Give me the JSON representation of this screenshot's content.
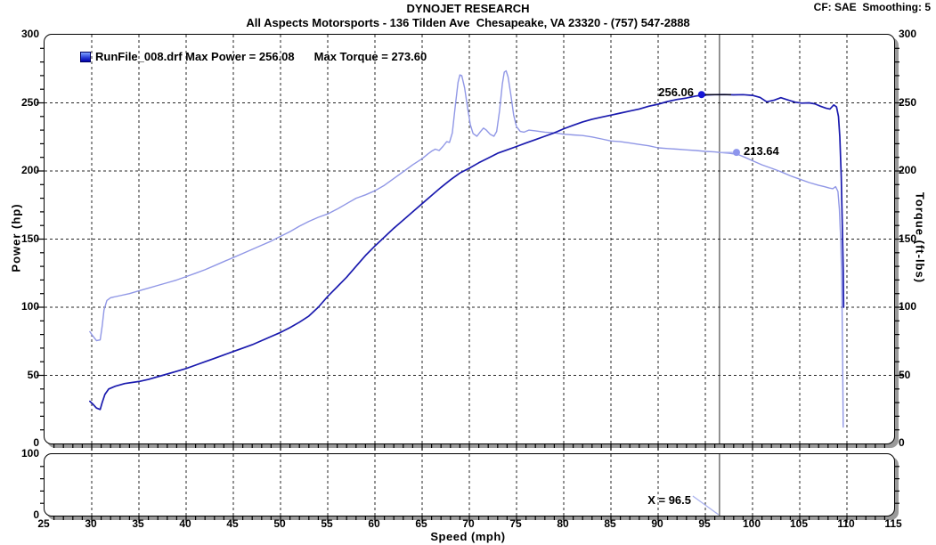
{
  "header": {
    "title": "DYNOJET RESEARCH",
    "subtitle": "All Aspects Motorsports - 136 Tilden Ave  Chesapeake, VA 23320 - (757) 547-2888",
    "settings": "CF: SAE  Smoothing: 5"
  },
  "legend": {
    "run_file": "RunFile_008.drf",
    "max_power": "Max Power = 256.08",
    "max_torque": "Max Torque = 273.60",
    "swatch_color": "#2b3fd9"
  },
  "axes": {
    "x": {
      "label": "Speed (mph)",
      "min": 25,
      "max": 115,
      "ticks": [
        25,
        30,
        35,
        40,
        45,
        50,
        55,
        60,
        65,
        70,
        75,
        80,
        85,
        90,
        95,
        100,
        105,
        110,
        115
      ],
      "minor_step": 1
    },
    "y_left": {
      "label": "Power (hp)",
      "min": 0,
      "max": 300,
      "ticks": [
        0,
        50,
        100,
        150,
        200,
        250,
        300
      ],
      "minor_step": 10
    },
    "y_right": {
      "label": "Torque (ft-lbs)",
      "min": 0,
      "max": 300,
      "ticks": [
        0,
        50,
        100,
        150,
        200,
        250,
        300
      ],
      "minor_step": 10
    },
    "sub_y": {
      "min": 0,
      "max": 100,
      "ticks": [
        100,
        0
      ],
      "minor_step": 20
    }
  },
  "cursor": {
    "x": 96.5,
    "label": "X = 96.5",
    "color": "#2a2a2a",
    "leader_color": "#a9b1ef"
  },
  "markers": {
    "power": {
      "x": 94.6,
      "value": 256.06,
      "label": "256.06",
      "dot_color": "#1616d6",
      "leader_color": "#000000"
    },
    "torque": {
      "x": 98.3,
      "value": 213.64,
      "label": "213.64",
      "dot_color": "#8d95ec",
      "leader_color": "#a9b1ef"
    }
  },
  "chart_data": {
    "type": "line",
    "title": "DYNOJET RESEARCH",
    "xlabel": "Speed (mph)",
    "ylabel_left": "Power (hp)",
    "ylabel_right": "Torque (ft-lbs)",
    "xlim": [
      25,
      115
    ],
    "ylim": [
      0,
      300
    ],
    "grid": {
      "x_step": 5,
      "y_step": 50,
      "style": "dashed",
      "color": "#000000"
    },
    "legend_position": "top-left-inside",
    "series": [
      {
        "name": "Power",
        "unit": "hp",
        "axis": "left",
        "color": "#1a1aae",
        "max": 256.08,
        "points": [
          [
            29.8,
            31
          ],
          [
            30.1,
            29
          ],
          [
            30.5,
            26
          ],
          [
            30.9,
            25
          ],
          [
            31.1,
            30
          ],
          [
            31.4,
            36
          ],
          [
            31.8,
            40
          ],
          [
            32.5,
            42
          ],
          [
            33.5,
            44
          ],
          [
            35,
            45.5
          ],
          [
            36,
            47
          ],
          [
            37,
            49
          ],
          [
            38,
            51
          ],
          [
            39,
            53
          ],
          [
            40,
            55
          ],
          [
            41,
            57.5
          ],
          [
            42,
            60
          ],
          [
            43,
            62.5
          ],
          [
            44,
            65
          ],
          [
            45,
            67.5
          ],
          [
            46,
            70
          ],
          [
            47,
            72.5
          ],
          [
            48,
            75.5
          ],
          [
            49,
            78.5
          ],
          [
            50,
            81.5
          ],
          [
            51,
            85
          ],
          [
            52,
            89
          ],
          [
            53,
            93.5
          ],
          [
            54,
            100
          ],
          [
            55,
            108
          ],
          [
            56,
            115
          ],
          [
            57,
            122
          ],
          [
            58,
            130
          ],
          [
            59,
            138
          ],
          [
            60,
            145
          ],
          [
            61,
            151.5
          ],
          [
            62,
            158
          ],
          [
            63,
            164
          ],
          [
            64,
            170
          ],
          [
            65,
            176
          ],
          [
            66,
            182
          ],
          [
            67,
            188
          ],
          [
            68,
            193.5
          ],
          [
            69,
            198.5
          ],
          [
            70,
            202
          ],
          [
            71,
            206
          ],
          [
            72,
            209.5
          ],
          [
            73,
            213
          ],
          [
            74,
            215.5
          ],
          [
            75,
            218
          ],
          [
            76,
            220.5
          ],
          [
            77,
            223
          ],
          [
            78,
            225.5
          ],
          [
            79,
            228
          ],
          [
            80,
            231
          ],
          [
            81,
            233.5
          ],
          [
            82,
            236
          ],
          [
            83,
            238
          ],
          [
            84,
            239.5
          ],
          [
            85,
            241
          ],
          [
            86,
            242.5
          ],
          [
            87,
            244
          ],
          [
            88,
            245.5
          ],
          [
            89,
            247.5
          ],
          [
            90,
            249
          ],
          [
            91,
            251
          ],
          [
            92,
            252.5
          ],
          [
            93,
            253.5
          ],
          [
            94,
            255
          ],
          [
            95,
            255.8
          ],
          [
            96,
            256
          ],
          [
            97,
            256.1
          ],
          [
            98,
            255.9
          ],
          [
            99,
            256
          ],
          [
            100,
            255.5
          ],
          [
            100.8,
            254
          ],
          [
            101.5,
            250.8
          ],
          [
            102.3,
            252
          ],
          [
            103,
            253.8
          ],
          [
            103.8,
            252
          ],
          [
            104.5,
            250.5
          ],
          [
            105.2,
            249.8
          ],
          [
            106,
            250
          ],
          [
            106.6,
            249.3
          ],
          [
            107.2,
            247.5
          ],
          [
            107.8,
            246
          ],
          [
            108.2,
            245.5
          ],
          [
            108.6,
            248.5
          ],
          [
            108.9,
            247
          ],
          [
            109.1,
            240
          ],
          [
            109.25,
            225
          ],
          [
            109.4,
            196
          ],
          [
            109.5,
            163
          ],
          [
            109.6,
            128
          ],
          [
            109.65,
            100
          ]
        ]
      },
      {
        "name": "Torque",
        "unit": "ft-lbs",
        "axis": "right",
        "color": "#9097e6",
        "max": 273.6,
        "points": [
          [
            29.8,
            82
          ],
          [
            30.1,
            79
          ],
          [
            30.5,
            75.5
          ],
          [
            30.9,
            76
          ],
          [
            31.1,
            86
          ],
          [
            31.3,
            98
          ],
          [
            31.6,
            105
          ],
          [
            32,
            107
          ],
          [
            33,
            108.5
          ],
          [
            34,
            110
          ],
          [
            35,
            112
          ],
          [
            36,
            114
          ],
          [
            37,
            116
          ],
          [
            38,
            118
          ],
          [
            39,
            120
          ],
          [
            40,
            122.5
          ],
          [
            41,
            125
          ],
          [
            42,
            127.5
          ],
          [
            43,
            130.5
          ],
          [
            44,
            133.5
          ],
          [
            45,
            136.5
          ],
          [
            46,
            139.5
          ],
          [
            47,
            142.5
          ],
          [
            48,
            145.5
          ],
          [
            49,
            148.5
          ],
          [
            50,
            152
          ],
          [
            51,
            155.5
          ],
          [
            52,
            159.5
          ],
          [
            53,
            163
          ],
          [
            54,
            166
          ],
          [
            55,
            168.5
          ],
          [
            56,
            172
          ],
          [
            57,
            176
          ],
          [
            58,
            180
          ],
          [
            59,
            182.5
          ],
          [
            60,
            185.5
          ],
          [
            61,
            189.5
          ],
          [
            62,
            194.5
          ],
          [
            63,
            199.5
          ],
          [
            64,
            204.5
          ],
          [
            65,
            209
          ],
          [
            65.6,
            212.5
          ],
          [
            66,
            214.5
          ],
          [
            66.4,
            216
          ],
          [
            66.8,
            215
          ],
          [
            67.2,
            218
          ],
          [
            67.6,
            221.5
          ],
          [
            67.9,
            221
          ],
          [
            68.2,
            228
          ],
          [
            68.5,
            247
          ],
          [
            68.8,
            265
          ],
          [
            69,
            270.5
          ],
          [
            69.2,
            270
          ],
          [
            69.5,
            261
          ],
          [
            69.8,
            247
          ],
          [
            70.1,
            234
          ],
          [
            70.4,
            227.5
          ],
          [
            70.8,
            225.5
          ],
          [
            71.2,
            229
          ],
          [
            71.5,
            231.5
          ],
          [
            71.8,
            230
          ],
          [
            72.2,
            227
          ],
          [
            72.6,
            225.5
          ],
          [
            72.9,
            229
          ],
          [
            73.2,
            244
          ],
          [
            73.5,
            264
          ],
          [
            73.7,
            272.5
          ],
          [
            73.9,
            273.5
          ],
          [
            74.1,
            269
          ],
          [
            74.4,
            256
          ],
          [
            74.7,
            241
          ],
          [
            75,
            232.5
          ],
          [
            75.4,
            229
          ],
          [
            75.8,
            228.5
          ],
          [
            76.3,
            230
          ],
          [
            77,
            229.5
          ],
          [
            78,
            228.5
          ],
          [
            79,
            228
          ],
          [
            80,
            227
          ],
          [
            81,
            226.5
          ],
          [
            82,
            226
          ],
          [
            83,
            225
          ],
          [
            84,
            223.5
          ],
          [
            85,
            222
          ],
          [
            86,
            221.5
          ],
          [
            87,
            220.5
          ],
          [
            88,
            219.5
          ],
          [
            89,
            218.5
          ],
          [
            90,
            217
          ],
          [
            91,
            216.5
          ],
          [
            92,
            216
          ],
          [
            93,
            215.5
          ],
          [
            94,
            215
          ],
          [
            95,
            214.4
          ],
          [
            96,
            214
          ],
          [
            96.5,
            213.6
          ],
          [
            97.5,
            213
          ],
          [
            98.5,
            212
          ],
          [
            99.2,
            210
          ],
          [
            100,
            207.5
          ],
          [
            101,
            204.5
          ],
          [
            102,
            202
          ],
          [
            103,
            199.5
          ],
          [
            104,
            196.5
          ],
          [
            105,
            194
          ],
          [
            106,
            191.5
          ],
          [
            107,
            189.5
          ],
          [
            107.6,
            188.5
          ],
          [
            108.1,
            187.5
          ],
          [
            108.5,
            187
          ],
          [
            108.8,
            188.5
          ],
          [
            109.05,
            185
          ],
          [
            109.2,
            172
          ],
          [
            109.35,
            148
          ],
          [
            109.45,
            118
          ],
          [
            109.55,
            60
          ],
          [
            109.6,
            12
          ]
        ]
      }
    ]
  }
}
